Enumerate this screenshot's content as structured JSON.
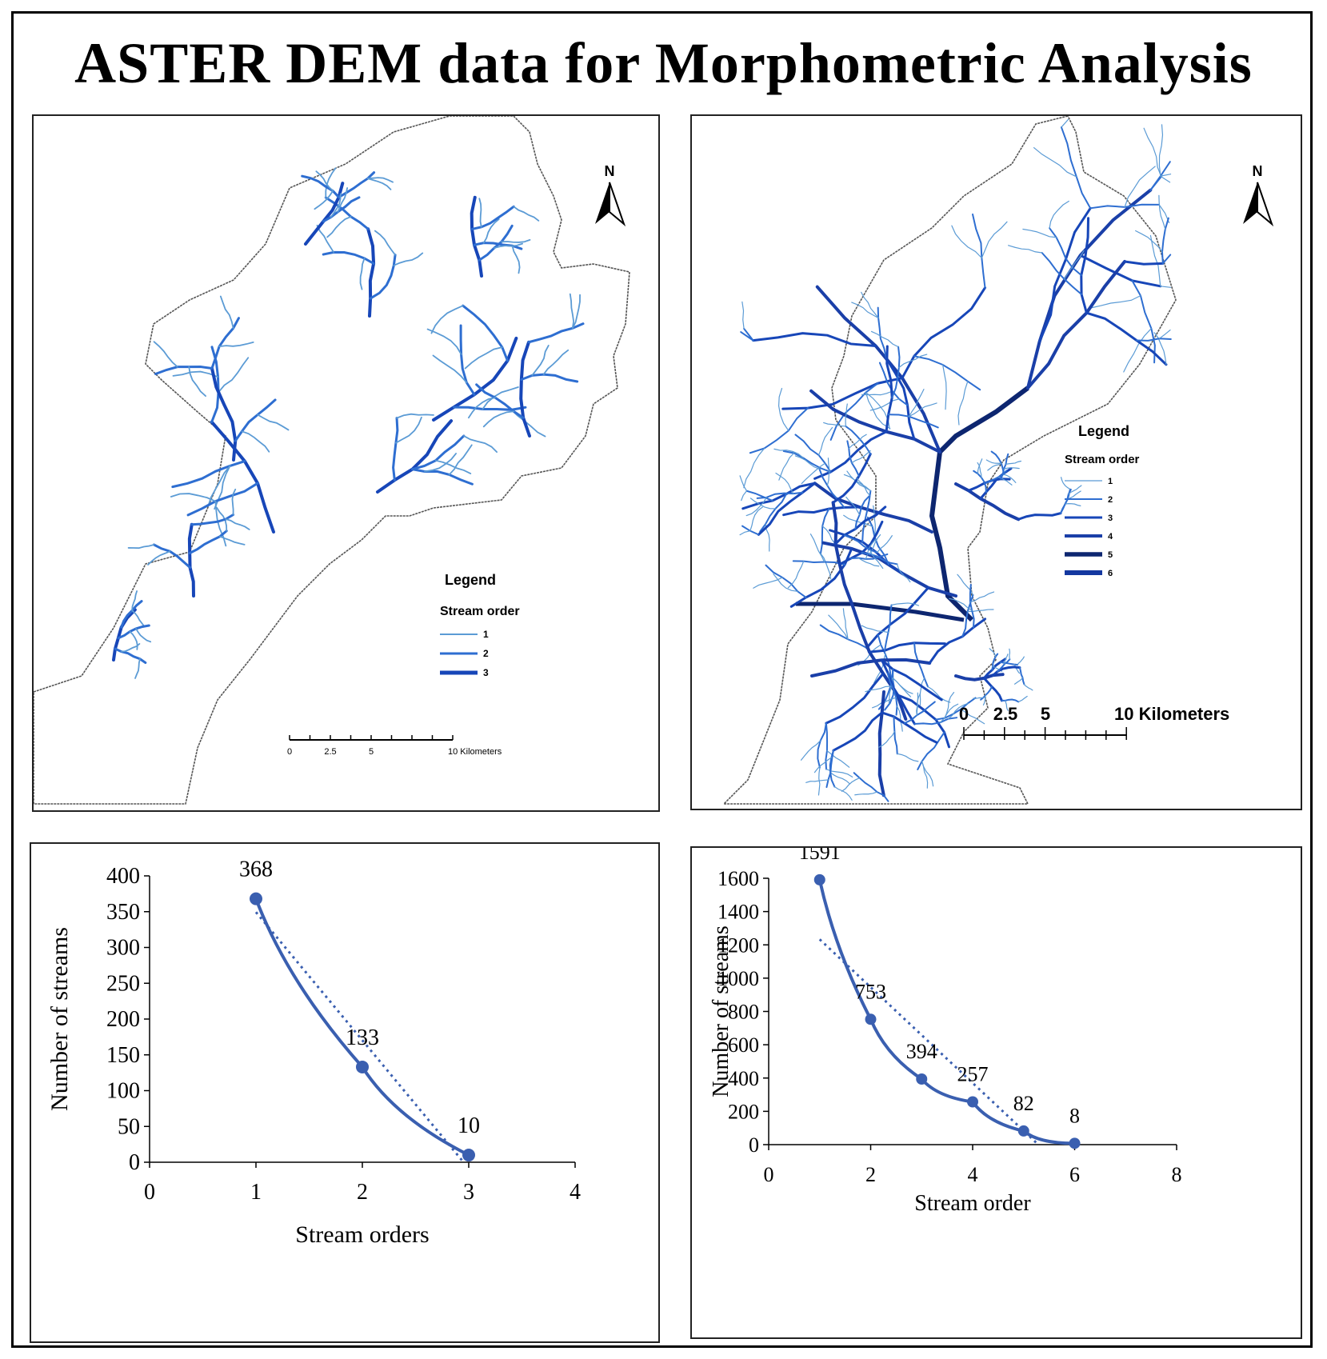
{
  "title": "ASTER DEM data for Morphometric Analysis",
  "colors": {
    "order1": "#5b9bd5",
    "order2": "#2e6ed1",
    "order3": "#1746b8",
    "order4": "#1a3fa8",
    "order5": "#0d2670",
    "order6": "#1438a0",
    "basin_outline": "#555555",
    "chart_line": "#3a5fb0"
  },
  "maps": [
    {
      "north": "N",
      "legend_title": "Legend",
      "legend_subtitle": "Stream order",
      "legend_items": [
        "1",
        "2",
        "3"
      ],
      "scale_labels": [
        "0",
        "2.5",
        "5",
        "10 Kilometers"
      ]
    },
    {
      "north": "N",
      "legend_title": "Legend",
      "legend_subtitle": "Stream order",
      "legend_items": [
        "1",
        "2",
        "3",
        "4",
        "5",
        "6"
      ],
      "scale_labels": [
        "0",
        "2.5",
        "5",
        "10 Kilometers"
      ]
    }
  ],
  "chart_data": [
    {
      "type": "line",
      "x": [
        1,
        2,
        3
      ],
      "y": [
        368,
        133,
        10
      ],
      "data_labels": [
        "368",
        "133",
        "10"
      ],
      "trendline": "linear, dotted",
      "xlabel": "Stream orders",
      "ylabel": "Number of streams",
      "xlim": [
        0,
        4
      ],
      "ylim": [
        0,
        400
      ],
      "xticks": [
        "0",
        "1",
        "2",
        "3",
        "4"
      ],
      "yticks": [
        "0",
        "50",
        "100",
        "150",
        "200",
        "250",
        "300",
        "350",
        "400"
      ],
      "grid": false
    },
    {
      "type": "line",
      "x": [
        1,
        2,
        3,
        4,
        5,
        6
      ],
      "y": [
        1591,
        753,
        394,
        257,
        82,
        8
      ],
      "data_labels": [
        "1591",
        "753",
        "394",
        "257",
        "82",
        "8"
      ],
      "trendline": "linear, dotted",
      "xlabel": "Stream order",
      "ylabel": "Number of streams",
      "xlim": [
        0,
        8
      ],
      "ylim": [
        0,
        1600
      ],
      "xticks": [
        "0",
        "2",
        "4",
        "6",
        "8"
      ],
      "yticks": [
        "0",
        "200",
        "400",
        "600",
        "800",
        "1000",
        "1200",
        "1400",
        "1600"
      ],
      "grid": false
    }
  ]
}
